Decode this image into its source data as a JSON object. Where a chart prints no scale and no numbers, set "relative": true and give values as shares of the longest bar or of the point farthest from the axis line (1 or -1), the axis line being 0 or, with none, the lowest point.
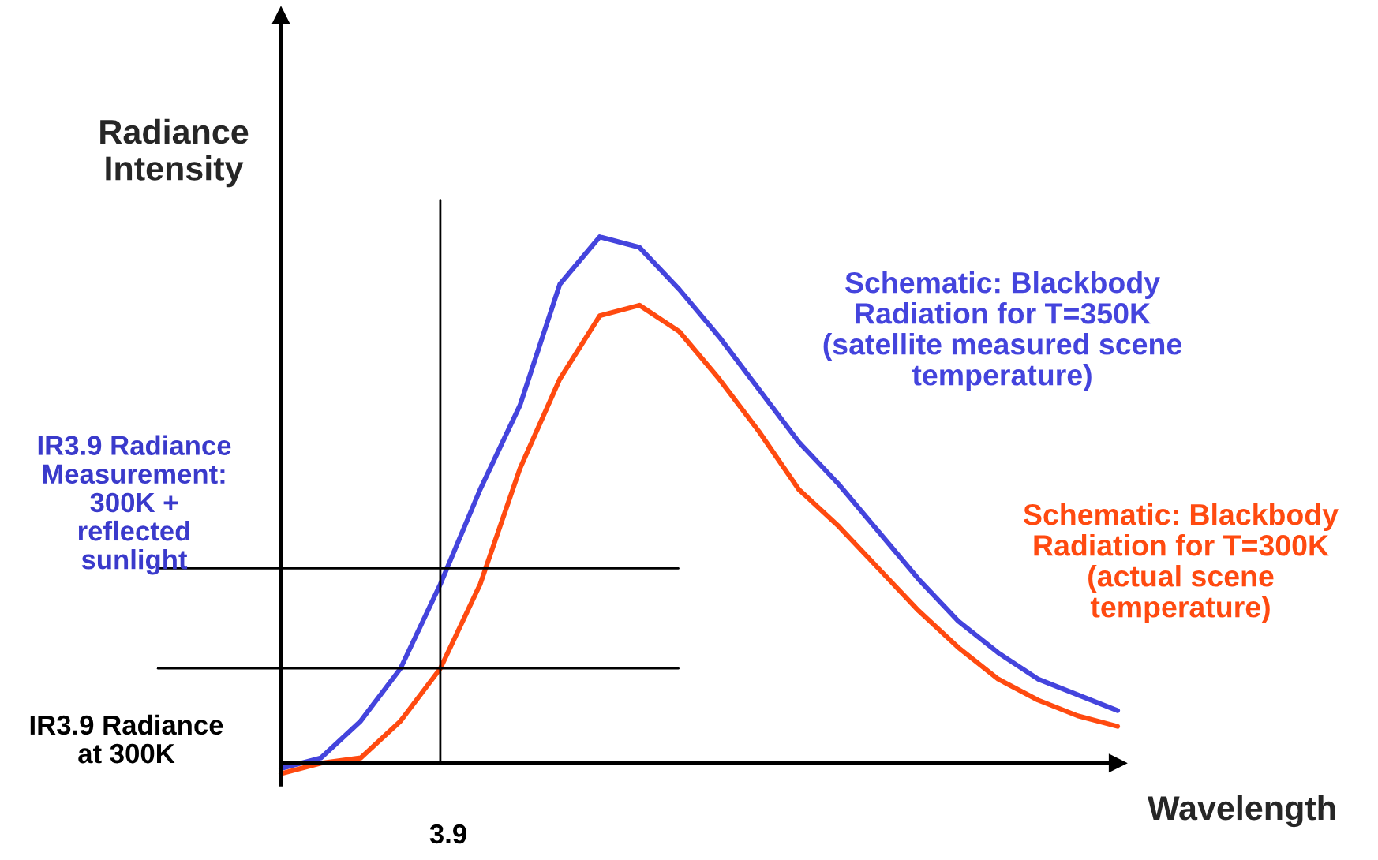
{
  "chart_data": {
    "type": "line",
    "relative": true,
    "xlabel": "Wavelength",
    "ylabel": "Radiance\nIntensity",
    "categories": [
      null,
      null,
      null,
      null,
      null,
      null,
      null,
      null,
      null,
      null,
      null,
      null,
      null,
      null,
      null,
      null,
      null,
      null,
      null,
      null,
      null,
      null
    ],
    "series": [
      {
        "name": "Schematic: Blackbody\nRadiation for T=350K\n(satellite measured scene\ntemperature)",
        "color": "#4444dd",
        "values": [
          -0.01,
          0.01,
          0.08,
          0.18,
          0.34,
          0.52,
          0.68,
          0.91,
          1.0,
          0.98,
          0.9,
          0.81,
          0.71,
          0.61,
          0.53,
          0.44,
          0.35,
          0.27,
          0.21,
          0.16,
          0.13,
          0.1
        ]
      },
      {
        "name": "Schematic: Blackbody\nRadiation for T=300K\n(actual scene\ntemperature)",
        "color": "#ff4a10",
        "values": [
          -0.02,
          0,
          0.01,
          0.08,
          0.18,
          0.34,
          0.56,
          0.73,
          0.85,
          0.87,
          0.82,
          0.73,
          0.63,
          0.52,
          0.45,
          0.37,
          0.29,
          0.22,
          0.16,
          0.12,
          0.09,
          0.07
        ]
      }
    ],
    "ref_lines": [
      {
        "axis": "y",
        "value": 0.37,
        "color": "#000000"
      },
      {
        "axis": "y",
        "value": 0.18,
        "color": "#000000"
      }
    ],
    "annotations": [
      "IR3.9 Radiance\nMeasurement:\n300K +\nreflected\nsunlight",
      "IR3.9 Radiance\nat 300K",
      "3.9"
    ],
    "legend": false,
    "grid": false
  }
}
